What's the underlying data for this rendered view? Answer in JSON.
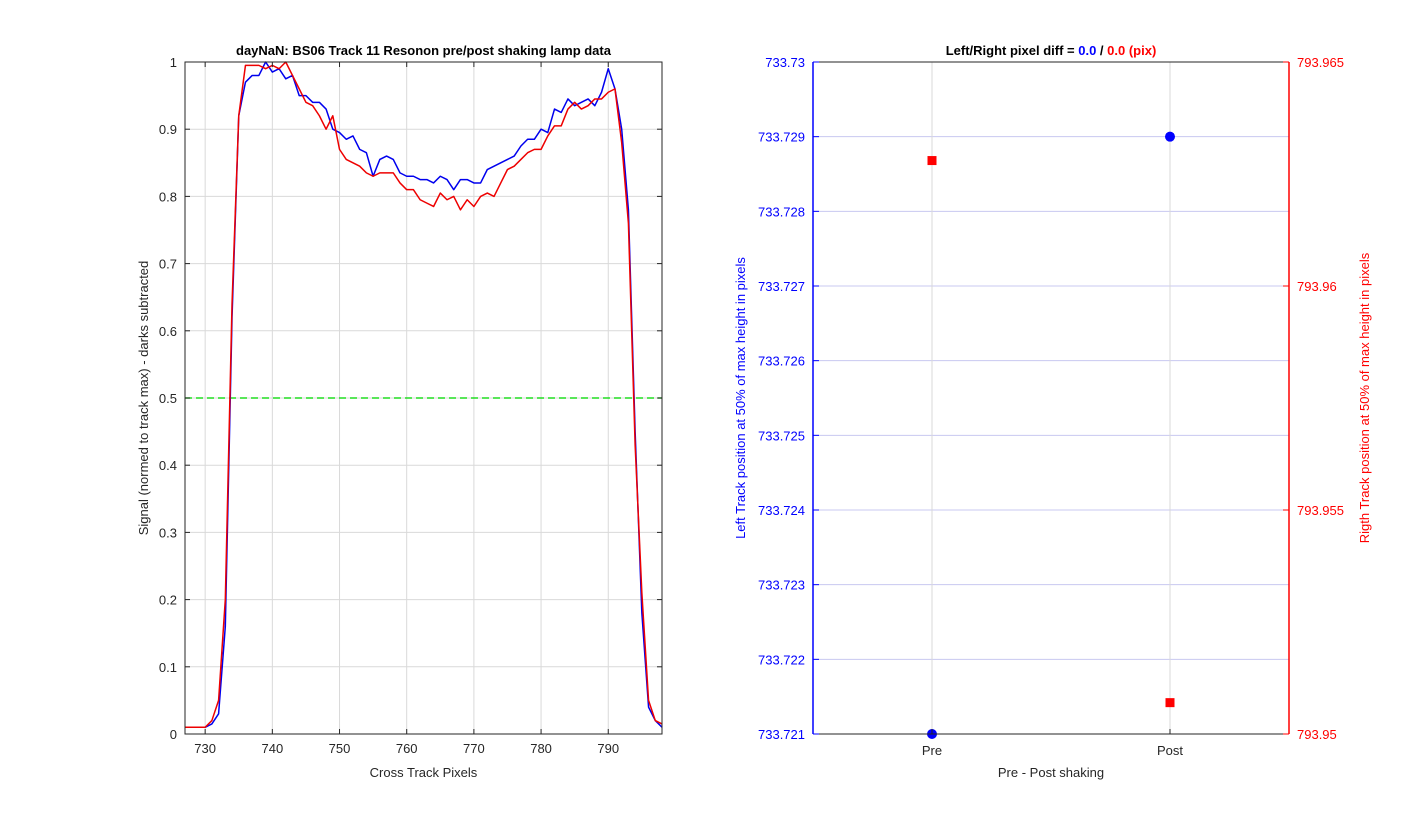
{
  "chart_data": [
    {
      "type": "line",
      "title": "dayNaN: BS06  Track 11 Resonon pre/post shaking lamp data",
      "xlabel": "Cross Track Pixels",
      "ylabel": "Signal (normed to track max) - darks subtracted",
      "xlim": [
        727,
        798
      ],
      "ylim": [
        0,
        1
      ],
      "xticks": [
        730,
        740,
        750,
        760,
        770,
        780,
        790
      ],
      "yticks": [
        0,
        0.1,
        0.2,
        0.3,
        0.4,
        0.5,
        0.6,
        0.7,
        0.8,
        0.9,
        1
      ],
      "ytick_labels": [
        "0",
        "0.1",
        "0.2",
        "0.3",
        "0.4",
        "0.5",
        "0.6",
        "0.7",
        "0.8",
        "0.9",
        "1"
      ],
      "grid": true,
      "threshold": {
        "y": 0.5,
        "style": "dashed",
        "color": "#22dd22"
      },
      "series": [
        {
          "color": "#0000ee",
          "x": [
            727,
            728,
            729,
            730,
            731,
            732,
            733,
            734,
            735,
            736,
            737,
            738,
            739,
            740,
            741,
            742,
            743,
            744,
            745,
            746,
            747,
            748,
            749,
            750,
            751,
            752,
            753,
            754,
            755,
            756,
            757,
            758,
            759,
            760,
            761,
            762,
            763,
            764,
            765,
            766,
            767,
            768,
            769,
            770,
            771,
            772,
            773,
            774,
            775,
            776,
            777,
            778,
            779,
            780,
            781,
            782,
            783,
            784,
            785,
            786,
            787,
            788,
            789,
            790,
            791,
            792,
            793,
            794,
            795,
            796,
            797,
            798
          ],
          "y": [
            0.01,
            0.01,
            0.01,
            0.01,
            0.015,
            0.03,
            0.16,
            0.62,
            0.92,
            0.97,
            0.98,
            0.98,
            1.0,
            0.985,
            0.99,
            0.975,
            0.98,
            0.95,
            0.95,
            0.94,
            0.94,
            0.93,
            0.9,
            0.895,
            0.885,
            0.89,
            0.87,
            0.865,
            0.83,
            0.855,
            0.86,
            0.855,
            0.835,
            0.83,
            0.83,
            0.825,
            0.825,
            0.82,
            0.83,
            0.825,
            0.81,
            0.825,
            0.825,
            0.82,
            0.82,
            0.84,
            0.845,
            0.85,
            0.855,
            0.86,
            0.875,
            0.885,
            0.885,
            0.9,
            0.895,
            0.93,
            0.925,
            0.945,
            0.935,
            0.94,
            0.945,
            0.935,
            0.955,
            0.99,
            0.96,
            0.9,
            0.78,
            0.45,
            0.18,
            0.04,
            0.02,
            0.01
          ]
        },
        {
          "color": "#ee0000",
          "x": [
            727,
            728,
            729,
            730,
            731,
            732,
            733,
            734,
            735,
            736,
            737,
            738,
            739,
            740,
            741,
            742,
            743,
            744,
            745,
            746,
            747,
            748,
            749,
            750,
            751,
            752,
            753,
            754,
            755,
            756,
            757,
            758,
            759,
            760,
            761,
            762,
            763,
            764,
            765,
            766,
            767,
            768,
            769,
            770,
            771,
            772,
            773,
            774,
            775,
            776,
            777,
            778,
            779,
            780,
            781,
            782,
            783,
            784,
            785,
            786,
            787,
            788,
            789,
            790,
            791,
            792,
            793,
            794,
            795,
            796,
            797,
            798
          ],
          "y": [
            0.01,
            0.01,
            0.01,
            0.01,
            0.02,
            0.05,
            0.2,
            0.64,
            0.92,
            0.995,
            0.995,
            0.995,
            0.99,
            0.995,
            0.99,
            1.0,
            0.98,
            0.96,
            0.94,
            0.935,
            0.92,
            0.9,
            0.92,
            0.87,
            0.855,
            0.85,
            0.845,
            0.835,
            0.83,
            0.835,
            0.835,
            0.835,
            0.82,
            0.81,
            0.81,
            0.795,
            0.79,
            0.785,
            0.805,
            0.795,
            0.8,
            0.78,
            0.795,
            0.785,
            0.8,
            0.805,
            0.8,
            0.82,
            0.84,
            0.845,
            0.855,
            0.865,
            0.87,
            0.87,
            0.89,
            0.905,
            0.905,
            0.93,
            0.94,
            0.93,
            0.935,
            0.945,
            0.945,
            0.955,
            0.96,
            0.88,
            0.76,
            0.43,
            0.21,
            0.05,
            0.02,
            0.015
          ]
        }
      ]
    },
    {
      "type": "scatter",
      "title_prefix": "Left/Right pixel diff = ",
      "title_left_value": "0.0",
      "title_sep": " / ",
      "title_right_value": "0.0 (pix)",
      "xlabel": "Pre - Post shaking",
      "categories": [
        "Pre",
        "Post"
      ],
      "left_axis": {
        "label": "Left Track position at 50% of max height in pixels",
        "color": "#0000ff",
        "ylim": [
          733.721,
          733.73
        ],
        "tick_labels": [
          "733.721",
          "733.722",
          "733.723",
          "733.724",
          "733.725",
          "733.726",
          "733.727",
          "733.728",
          "733.729",
          "733.73"
        ]
      },
      "right_axis": {
        "label": "Rigth Track position at 50% of max height in pixels",
        "color": "#ff0000",
        "ylim": [
          793.95,
          793.965
        ],
        "tick_labels": [
          "793.95",
          "793.955",
          "793.96",
          "793.965"
        ]
      },
      "grid": true,
      "series": [
        {
          "axis": "left",
          "marker": "circle",
          "color": "#0000ff",
          "values": [
            733.721,
            733.729
          ]
        },
        {
          "axis": "right",
          "marker": "square",
          "color": "#ff0000",
          "values": [
            793.9628,
            793.9507
          ]
        }
      ]
    }
  ]
}
